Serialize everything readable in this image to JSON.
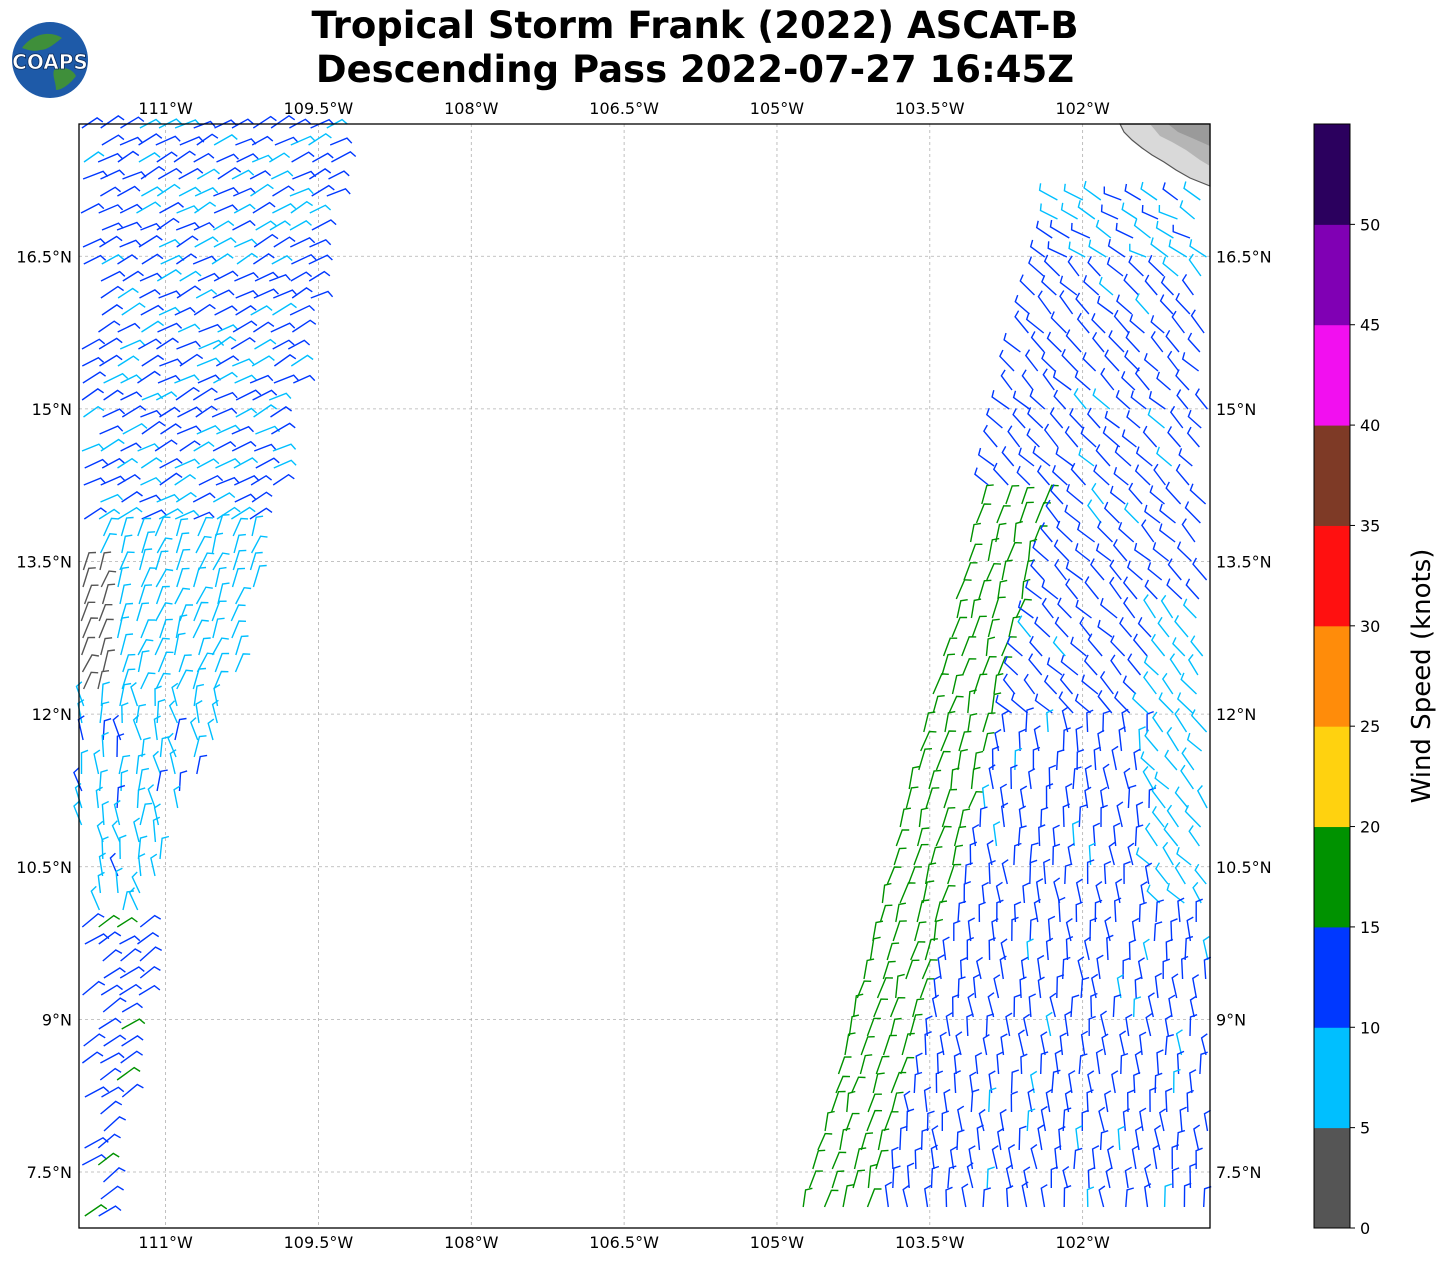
{
  "title": {
    "line1": "Tropical Storm Frank (2022) ASCAT-B",
    "line2": "Descending Pass 2022-07-27 16:45Z"
  },
  "logo": {
    "text": "COAPS"
  },
  "map": {
    "lon_range": [
      -111.85,
      -100.75
    ],
    "lat_range": [
      6.95,
      17.8
    ],
    "lon_ticks": [
      "111°W",
      "109.5°W",
      "108°W",
      "106.5°W",
      "105°W",
      "103.5°W",
      "102°W"
    ],
    "lat_ticks": [
      "16.5°N",
      "15°N",
      "13.5°N",
      "12°N",
      "10.5°N",
      "9°N",
      "7.5°N"
    ],
    "gridlines": true,
    "land_region": "top-right (Mexican coast)"
  },
  "colorbar": {
    "label": "Wind Speed (knots)",
    "ticks": [
      "0",
      "5",
      "10",
      "15",
      "20",
      "25",
      "30",
      "35",
      "40",
      "45",
      "50"
    ],
    "bins": [
      {
        "range": "0-5",
        "color": "#555555"
      },
      {
        "range": "5-10",
        "color": "#00bfff"
      },
      {
        "range": "10-15",
        "color": "#0038ff"
      },
      {
        "range": "15-20",
        "color": "#009200"
      },
      {
        "range": "20-25",
        "color": "#ffd20f"
      },
      {
        "range": "25-30",
        "color": "#ff8c0a"
      },
      {
        "range": "30-35",
        "color": "#ff1010"
      },
      {
        "range": "35-40",
        "color": "#7e3a26"
      },
      {
        "range": "40-45",
        "color": "#f20ff0"
      },
      {
        "range": "45-50",
        "color": "#8000b4"
      },
      {
        "range": "50+",
        "color": "#2b005e"
      }
    ]
  }
}
